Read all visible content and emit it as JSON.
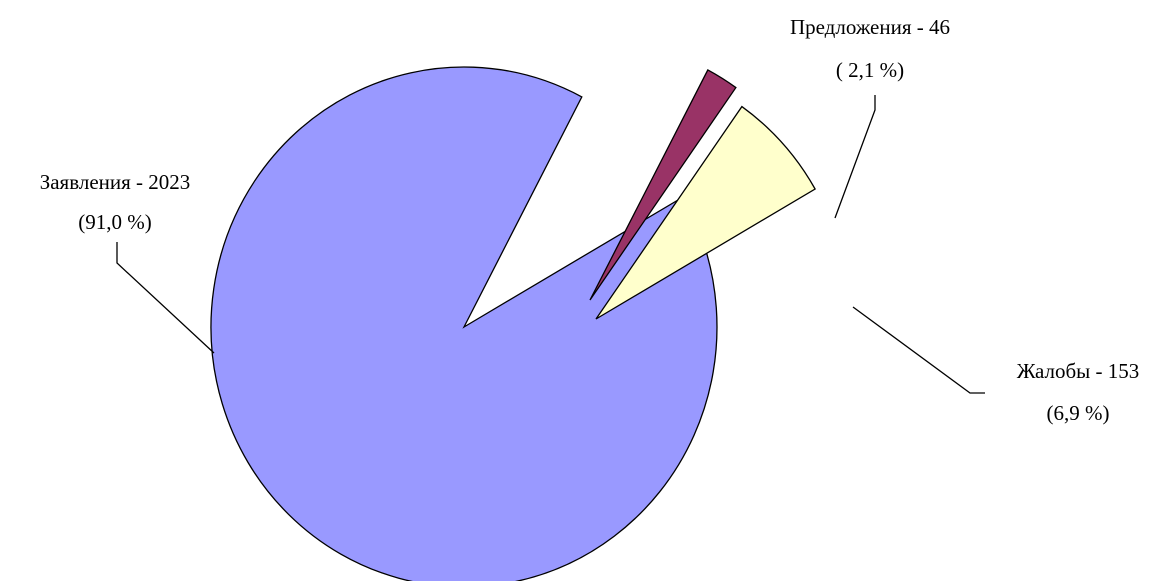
{
  "chart_data": {
    "type": "pie",
    "exploded": true,
    "slices": [
      {
        "category": "Заявления",
        "value": 2023,
        "percent": 91.0,
        "color": "#9999ff",
        "label_line1": "Заявления - 2023",
        "label_line2": "(91,0 %)"
      },
      {
        "category": "Предложения",
        "value": 46,
        "percent": 2.1,
        "color": "#993366",
        "label_line1": "Предложения - 46",
        "label_line2": "( 2,1 %)"
      },
      {
        "category": "Жалобы",
        "value": 153,
        "percent": 6.9,
        "color": "#ffffcc",
        "label_line1": "Жалобы - 153",
        "label_line2": "(6,9 %)"
      }
    ]
  }
}
